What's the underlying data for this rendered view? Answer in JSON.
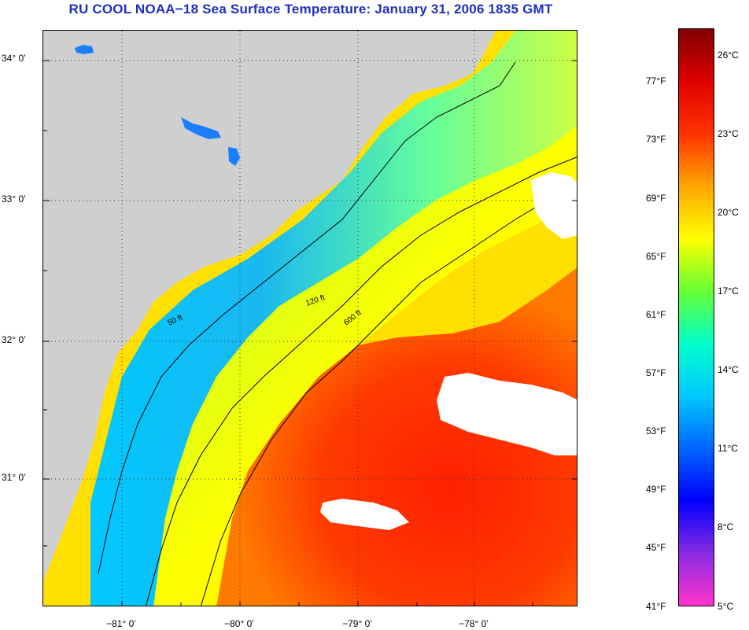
{
  "title": "RU COOL  NOAA−18  Sea Surface Temperature:  January 31, 2006 1835 GMT",
  "map": {
    "latitude_labels": [
      "34° 0’",
      "33° 0’",
      "32° 0’",
      "31° 0’"
    ],
    "longitude_labels": [
      "−81° 0’",
      "−80° 0’",
      "−79° 0’",
      "−78° 0’"
    ],
    "contour_labels": [
      "50 ft",
      "120 ft",
      "600 ft"
    ],
    "colors": {
      "land": "#cfcfcf",
      "cloud": "#ffffff",
      "contour": "#000000"
    }
  },
  "colorbar": {
    "fahrenheit_labels": [
      "77°F",
      "73°F",
      "69°F",
      "65°F",
      "61°F",
      "57°F",
      "53°F",
      "49°F",
      "45°F",
      "41°F"
    ],
    "celsius_labels": [
      "26°C",
      "23°C",
      "20°C",
      "17°C",
      "14°C",
      "11°C",
      "8°C",
      "5°C"
    ],
    "colors": [
      "#ff33cc",
      "#8a2be2",
      "#0000ff",
      "#0066ff",
      "#00c8ff",
      "#00ffcc",
      "#66ff33",
      "#ffff00",
      "#ffa500",
      "#ff3300",
      "#e00000",
      "#800000"
    ]
  }
}
